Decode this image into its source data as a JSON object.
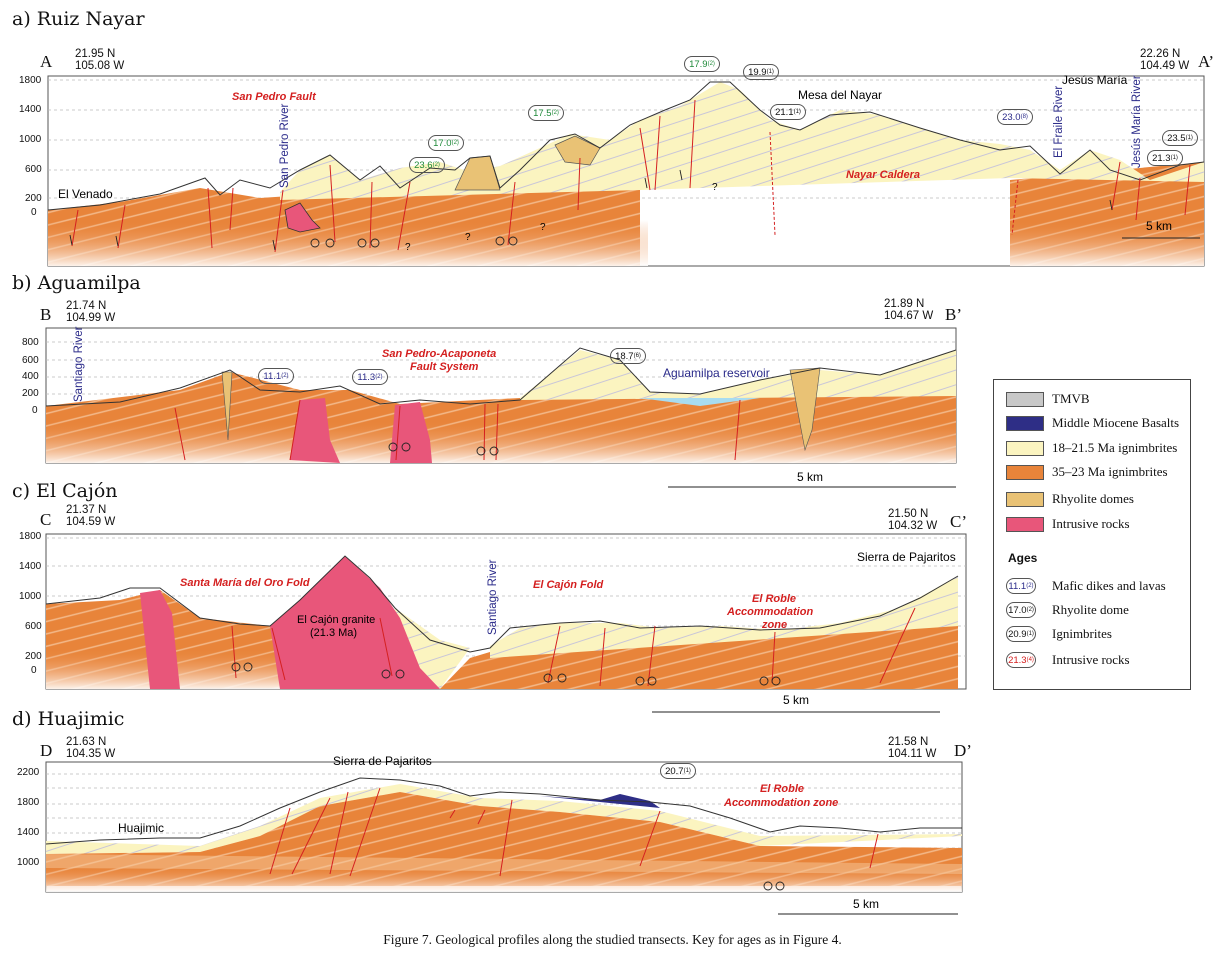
{
  "caption": "Figure 7. Geological profiles along the studied transects. Key for ages as in Figure 4.",
  "colors": {
    "orange": "#e8843a",
    "orange_light": "#f6c89a",
    "cream": "#fbf4c0",
    "dome": "#e9c275",
    "intrusive": "#e8567a",
    "basalt": "#2e2e86",
    "tmvb": "#c8c8c8",
    "fault": "#d42020",
    "water": "#a8dcf0",
    "label_red": "#d42020",
    "label_blue": "#2b2b8a",
    "label_green": "#1f8a3a"
  },
  "sections": {
    "a": {
      "title": "a) Ruiz Nayar",
      "left": "A",
      "right": "A’",
      "left_coord": [
        "21.95 N",
        "105.08 W"
      ],
      "right_coord": [
        "22.26 N",
        "104.49 W"
      ],
      "ticks": [
        "1800",
        "1400",
        "1000",
        "600",
        "200",
        "0"
      ],
      "labels": {
        "fault": "San Pedro Fault",
        "caldera": "Nayar Caldera",
        "river1": "San Pedro River",
        "river2": "El Fraile River",
        "river3": "Jesús María River",
        "jesus_maria": "Jesús María",
        "mesa": "Mesa del Nayar",
        "venado": "El Venado",
        "scale": "5 km",
        "question": "?"
      },
      "ages": [
        {
          "v": "23.6",
          "n": "(2)",
          "kind": "green"
        },
        {
          "v": "17.0",
          "n": "(2)",
          "kind": "green"
        },
        {
          "v": "17.5",
          "n": "(2)",
          "kind": "green"
        },
        {
          "v": "17.9",
          "n": "(2)",
          "kind": "green"
        },
        {
          "v": "19.9",
          "n": "(1)",
          "kind": "black"
        },
        {
          "v": "21.1",
          "n": "(1)",
          "kind": "black"
        },
        {
          "v": "23.0",
          "n": "(8)",
          "kind": "blue"
        },
        {
          "v": "21.3",
          "n": "(1)",
          "kind": "black"
        },
        {
          "v": "23.5",
          "n": "(1)",
          "kind": "black"
        }
      ]
    },
    "b": {
      "title": "b) Aguamilpa",
      "left": "B",
      "right": "B’",
      "left_coord": [
        "21.74 N",
        "104.99 W"
      ],
      "right_coord": [
        "21.89 N",
        "104.67 W"
      ],
      "ticks": [
        "800",
        "600",
        "400",
        "200",
        "0"
      ],
      "labels": {
        "fault1": "San Pedro-Acaponeta",
        "fault2": "Fault System",
        "river": "Santiago River",
        "reservoir": "Aguamilpa reservoir",
        "scale": "5 km"
      },
      "ages": [
        {
          "v": "11.1",
          "n": "(2)",
          "kind": "blue"
        },
        {
          "v": "11.3",
          "n": "(2)",
          "kind": "blue"
        },
        {
          "v": "18.7",
          "n": "(6)",
          "kind": "black"
        }
      ]
    },
    "c": {
      "title": "c) El Cajón",
      "left": "C",
      "right": "C’",
      "left_coord": [
        "21.37 N",
        "104.59 W"
      ],
      "right_coord": [
        "21.50 N",
        "104.32 W"
      ],
      "ticks": [
        "1800",
        "1400",
        "1000",
        "600",
        "200",
        "0"
      ],
      "labels": {
        "fold1": "Santa María del Oro Fold",
        "fold2": "El Cajón Fold",
        "zone1": "El Roble",
        "zone2": "Accommodation",
        "zone3": "zone",
        "granite1": "El Cajón granite",
        "granite2": "(21.3 Ma)",
        "river": "Santiago River",
        "sierra": "Sierra de Pajaritos",
        "scale": "5 km"
      }
    },
    "d": {
      "title": "d) Huajimic",
      "left": "D",
      "right": "D’",
      "left_coord": [
        "21.63 N",
        "104.35 W"
      ],
      "right_coord": [
        "21.58 N",
        "104.11 W"
      ],
      "ticks": [
        "2200",
        "1800",
        "1400",
        "1000"
      ],
      "labels": {
        "town": "Huajimic",
        "sierra": "Sierra de Pajaritos",
        "zone1": "El Roble",
        "zone2": "Accommodation zone",
        "scale": "5 km"
      },
      "ages": [
        {
          "v": "20.7",
          "n": "(1)",
          "kind": "black"
        }
      ]
    }
  },
  "legend": {
    "units": [
      {
        "label": "TMVB",
        "color": "#c8c8c8"
      },
      {
        "label": "Middle Miocene Basalts",
        "color": "#2e2e86"
      },
      {
        "label": "18–21.5 Ma ignimbrites",
        "color": "#fbf4c0"
      },
      {
        "label": "35–23 Ma ignimbrites",
        "color": "#e8843a"
      },
      {
        "label": "Rhyolite domes",
        "color": "#e9c275"
      },
      {
        "label": "Intrusive rocks",
        "color": "#e8567a"
      }
    ],
    "ages_title": "Ages",
    "ages": [
      {
        "sample": "11.1",
        "n": "(2)",
        "label": "Mafic dikes and lavas",
        "color": "#2b2b8a"
      },
      {
        "sample": "17.0",
        "n": "(2)",
        "label": "Rhyolite dome",
        "color": "#111111"
      },
      {
        "sample": "20.9",
        "n": "(1)",
        "label": "Ignimbrites",
        "color": "#111111"
      },
      {
        "sample": "21.3",
        "n": "(4)",
        "label": "Intrusive rocks",
        "color": "#d42020"
      }
    ]
  }
}
